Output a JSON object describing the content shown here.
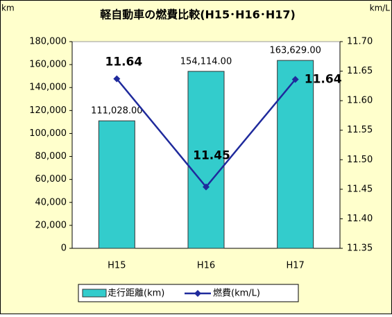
{
  "chart_data": {
    "type": "bar",
    "title": "軽自動車の燃費比較(H15･H16･H17)",
    "y_axis_label": "km",
    "y2_axis_label": "km/L",
    "categories": [
      "H15",
      "H16",
      "H17"
    ],
    "series": [
      {
        "name": "走行距離(km)",
        "type": "bar",
        "color": "#33cccc",
        "values": [
          111028,
          154114,
          163629
        ],
        "value_labels": [
          "111,028.00",
          "154,114.00",
          "163,629.00"
        ]
      },
      {
        "name": "燃費(km/L)",
        "type": "line",
        "axis": "y2",
        "color": "#1f2a9c",
        "values": [
          11.637,
          11.454,
          11.636
        ],
        "value_labels": [
          "11.64",
          "11.45",
          "11.64"
        ]
      }
    ],
    "ylim": [
      0,
      180000
    ],
    "yticks": [
      0,
      {
        "value": 20000,
        "label": "20,000"
      },
      {
        "value": 40000,
        "label": "40,000"
      },
      {
        "value": 60000,
        "label": "60,000"
      },
      {
        "value": 80000,
        "label": "80,000"
      },
      {
        "value": 100000,
        "label": "100,000"
      },
      {
        "value": 120000,
        "label": "120,000"
      },
      {
        "value": 140000,
        "label": "140,000"
      },
      {
        "value": 160000,
        "label": "160,000"
      },
      {
        "value": 180000,
        "label": "180,000"
      }
    ],
    "y2lim": [
      11.35,
      11.7
    ],
    "y2ticks": [
      11.35,
      {
        "value": 11.4,
        "label": "11.40"
      },
      11.45,
      {
        "value": 11.5,
        "label": "11.50"
      },
      11.55,
      {
        "value": 11.6,
        "label": "11.60"
      },
      11.65,
      {
        "value": 11.7,
        "label": "11.70"
      }
    ],
    "legend": "bottom"
  }
}
